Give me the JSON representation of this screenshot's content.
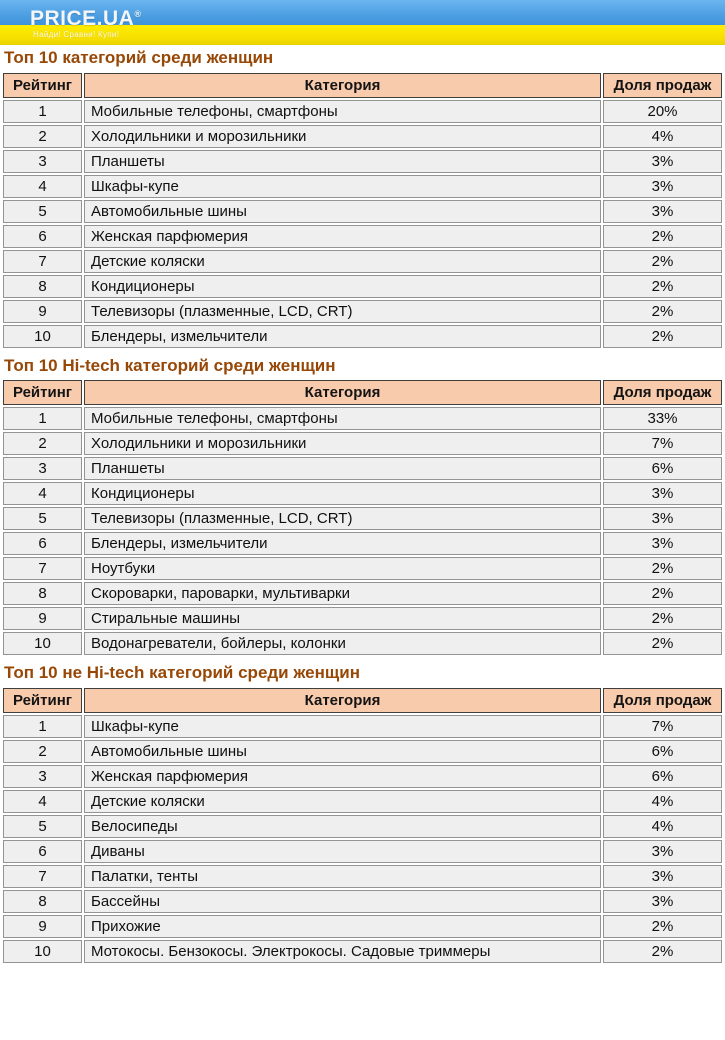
{
  "header": {
    "logo_text": "PRICE.UA",
    "logo_mark": "®",
    "tagline": "Найди! Сравни! Купи!",
    "colors": {
      "blue": "#4d9fe2",
      "yellow": "#f6df00"
    }
  },
  "columns": {
    "rank": "Рейтинг",
    "category": "Категория",
    "share": "Доля продаж"
  },
  "style_colors": {
    "title_text": "#974706",
    "header_cell_bg": "#f8cbad",
    "data_cell_bg": "#efefef"
  },
  "tables": [
    {
      "title": "Топ 10 категорий среди женщин",
      "rows": [
        {
          "rank": "1",
          "category": "Мобильные телефоны, смартфоны",
          "share": "20%"
        },
        {
          "rank": "2",
          "category": "Холодильники и морозильники",
          "share": "4%"
        },
        {
          "rank": "3",
          "category": "Планшеты",
          "share": "3%"
        },
        {
          "rank": "4",
          "category": "Шкафы-купе",
          "share": "3%"
        },
        {
          "rank": "5",
          "category": "Автомобильные шины",
          "share": "3%"
        },
        {
          "rank": "6",
          "category": "Женская парфюмерия",
          "share": "2%"
        },
        {
          "rank": "7",
          "category": "Детские коляски",
          "share": "2%"
        },
        {
          "rank": "8",
          "category": "Кондиционеры",
          "share": "2%"
        },
        {
          "rank": "9",
          "category": "Телевизоры (плазменные, LCD, CRT)",
          "share": "2%"
        },
        {
          "rank": "10",
          "category": "Блендеры, измельчители",
          "share": "2%"
        }
      ]
    },
    {
      "title": "Топ 10 Hi-tech категорий среди женщин",
      "rows": [
        {
          "rank": "1",
          "category": "Мобильные телефоны, смартфоны",
          "share": "33%"
        },
        {
          "rank": "2",
          "category": "Холодильники и морозильники",
          "share": "7%"
        },
        {
          "rank": "3",
          "category": "Планшеты",
          "share": "6%"
        },
        {
          "rank": "4",
          "category": "Кондиционеры",
          "share": "3%"
        },
        {
          "rank": "5",
          "category": "Телевизоры (плазменные, LCD, CRT)",
          "share": "3%"
        },
        {
          "rank": "6",
          "category": "Блендеры, измельчители",
          "share": "3%"
        },
        {
          "rank": "7",
          "category": "Ноутбуки",
          "share": "2%"
        },
        {
          "rank": "8",
          "category": "Скороварки, пароварки, мультиварки",
          "share": "2%"
        },
        {
          "rank": "9",
          "category": "Стиральные машины",
          "share": "2%"
        },
        {
          "rank": "10",
          "category": "Водонагреватели, бойлеры, колонки",
          "share": "2%"
        }
      ]
    },
    {
      "title": "Топ 10 не Hi-tech категорий среди женщин",
      "rows": [
        {
          "rank": "1",
          "category": "Шкафы-купе",
          "share": "7%"
        },
        {
          "rank": "2",
          "category": "Автомобильные шины",
          "share": "6%"
        },
        {
          "rank": "3",
          "category": "Женская парфюмерия",
          "share": "6%"
        },
        {
          "rank": "4",
          "category": "Детские коляски",
          "share": "4%"
        },
        {
          "rank": "5",
          "category": "Велосипеды",
          "share": "4%"
        },
        {
          "rank": "6",
          "category": "Диваны",
          "share": "3%"
        },
        {
          "rank": "7",
          "category": "Палатки, тенты",
          "share": "3%"
        },
        {
          "rank": "8",
          "category": "Бассейны",
          "share": "3%"
        },
        {
          "rank": "9",
          "category": "Прихожие",
          "share": "2%"
        },
        {
          "rank": "10",
          "category": "Мотокосы. Бензокосы. Электрокосы. Садовые триммеры",
          "share": "2%"
        }
      ]
    }
  ]
}
